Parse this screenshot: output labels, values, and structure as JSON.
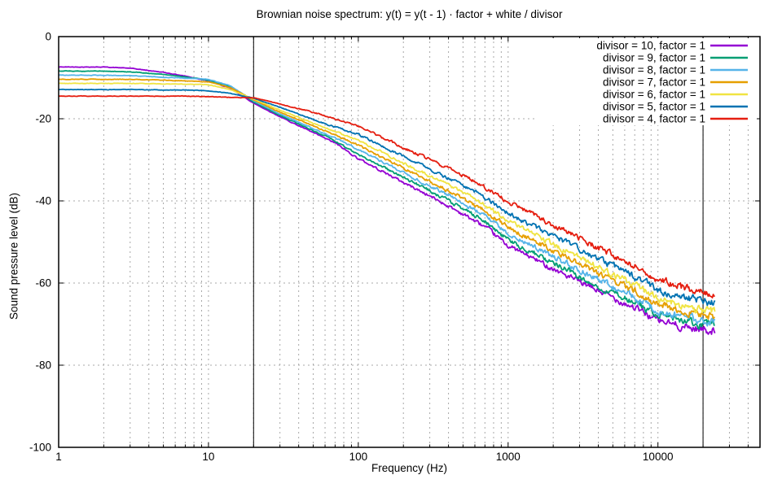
{
  "chart_data": {
    "type": "line",
    "title": "Brownian noise spectrum: y(t) = y(t - 1) · factor + white / divisor",
    "xlabel": "Frequency (Hz)",
    "ylabel": "Sound pressure level (dB)",
    "x_scale": "log",
    "xlim": [
      1,
      48000
    ],
    "ylim": [
      -100,
      0
    ],
    "x_ticks": [
      1,
      10,
      100,
      1000,
      10000
    ],
    "x_tick_labels": [
      "1",
      "10",
      "100",
      "1000",
      "10000"
    ],
    "y_ticks": [
      0,
      -20,
      -40,
      -60,
      -80,
      -100
    ],
    "y_tick_labels": [
      "0",
      "-20",
      "-40",
      "-60",
      "-80",
      "-100"
    ],
    "grid": true,
    "grid_color": "#a8a8a8",
    "axis_color": "#000000",
    "legend_position": "top-right",
    "audible_range_markers_hz": [
      20,
      20000
    ],
    "marker_color": "#000000",
    "frequencies": [
      1,
      2,
      3,
      5,
      7,
      10,
      14,
      20,
      30,
      50,
      70,
      100,
      200,
      300,
      500,
      700,
      1000,
      2000,
      3000,
      5000,
      7000,
      10000,
      14000,
      20000,
      24000
    ],
    "series": [
      {
        "name": "divisor = 10, factor = 1",
        "divisor": 10,
        "factor": 1,
        "color": "#9400d3",
        "values": [
          -7.4,
          -7.4,
          -7.7,
          -8.7,
          -9.6,
          -10.8,
          -12.6,
          -16.2,
          -19.5,
          -23.4,
          -25.9,
          -29.7,
          -35.5,
          -38.8,
          -43.2,
          -46.3,
          -50.9,
          -56.5,
          -59.8,
          -63.5,
          -66.0,
          -69.1,
          -70.5,
          -71.3,
          -71.5
        ]
      },
      {
        "name": "divisor = 9, factor = 1",
        "divisor": 9,
        "factor": 1,
        "color": "#009e73",
        "values": [
          -8.4,
          -8.4,
          -8.6,
          -9.2,
          -9.8,
          -10.6,
          -12.3,
          -15.9,
          -19.2,
          -22.9,
          -25.3,
          -28.7,
          -34.3,
          -37.5,
          -41.8,
          -44.9,
          -49.5,
          -55.1,
          -58.3,
          -62.3,
          -64.8,
          -67.7,
          -69.2,
          -70.1,
          -70.5
        ]
      },
      {
        "name": "divisor = 8, factor = 1",
        "divisor": 8,
        "factor": 1,
        "color": "#56b4e9",
        "values": [
          -9.4,
          -9.4,
          -9.5,
          -9.9,
          -10.1,
          -10.4,
          -12.0,
          -15.6,
          -18.9,
          -22.4,
          -24.7,
          -27.5,
          -33.1,
          -36.3,
          -40.6,
          -43.6,
          -48.0,
          -53.6,
          -56.8,
          -60.9,
          -63.4,
          -66.7,
          -68.1,
          -69.1,
          -69.4
        ]
      },
      {
        "name": "divisor = 7, factor = 1",
        "divisor": 7,
        "factor": 1,
        "color": "#e69f00",
        "values": [
          -10.4,
          -10.4,
          -10.4,
          -10.6,
          -10.8,
          -11.0,
          -12.4,
          -15.4,
          -18.4,
          -21.8,
          -23.9,
          -26.5,
          -32.0,
          -35.2,
          -39.4,
          -42.4,
          -46.5,
          -52.1,
          -55.3,
          -59.4,
          -61.9,
          -65.1,
          -66.6,
          -67.7,
          -68.1
        ]
      },
      {
        "name": "divisor = 6, factor = 1",
        "divisor": 6,
        "factor": 1,
        "color": "#f0e442",
        "values": [
          -11.4,
          -11.4,
          -11.4,
          -11.5,
          -11.6,
          -11.7,
          -12.9,
          -15.2,
          -17.9,
          -21.1,
          -23.1,
          -25.3,
          -30.8,
          -33.9,
          -38.0,
          -40.9,
          -45.0,
          -50.6,
          -53.8,
          -57.9,
          -60.5,
          -63.7,
          -65.3,
          -66.6,
          -67.0
        ]
      },
      {
        "name": "divisor = 5, factor = 1",
        "divisor": 5,
        "factor": 1,
        "color": "#0072b2",
        "values": [
          -12.9,
          -12.9,
          -12.9,
          -13.0,
          -13.0,
          -13.2,
          -13.8,
          -15.0,
          -17.2,
          -20.2,
          -22.0,
          -23.8,
          -29.2,
          -32.2,
          -36.2,
          -39.1,
          -43.0,
          -48.6,
          -51.8,
          -55.8,
          -58.4,
          -61.6,
          -63.2,
          -64.5,
          -65.0
        ]
      },
      {
        "name": "divisor = 4, factor = 1",
        "divisor": 4,
        "factor": 1,
        "color": "#e51e10",
        "values": [
          -14.5,
          -14.5,
          -14.5,
          -14.5,
          -14.5,
          -14.6,
          -14.8,
          -14.9,
          -16.4,
          -18.4,
          -20.0,
          -21.8,
          -27.0,
          -30.0,
          -33.8,
          -36.6,
          -40.2,
          -45.8,
          -49.0,
          -53.2,
          -55.9,
          -59.0,
          -60.9,
          -62.4,
          -63.0
        ]
      }
    ]
  }
}
